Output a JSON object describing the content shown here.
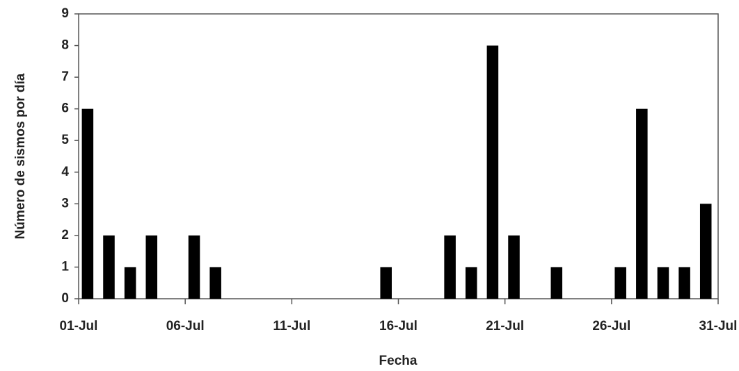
{
  "chart_data": {
    "type": "bar",
    "x_label": "Fecha",
    "y_label": "Número de sismos por día",
    "x": [
      1,
      2,
      3,
      4,
      6,
      7,
      15,
      18,
      19,
      20,
      21,
      23,
      26,
      27,
      28,
      29,
      30
    ],
    "values": [
      6,
      2,
      1,
      2,
      2,
      1,
      1,
      2,
      1,
      8,
      2,
      1,
      1,
      6,
      1,
      1,
      3
    ],
    "color": "#000000",
    "xlim": [
      1,
      31
    ],
    "xticks": [
      {
        "value": 1,
        "label": "01-Jul"
      },
      {
        "value": 6,
        "label": "06-Jul"
      },
      {
        "value": 11,
        "label": "11-Jul"
      },
      {
        "value": 16,
        "label": "16-Jul"
      },
      {
        "value": 21,
        "label": "21-Jul"
      },
      {
        "value": 26,
        "label": "26-Jul"
      },
      {
        "value": 31,
        "label": "31-Jul"
      }
    ],
    "ylim": [
      0,
      9
    ],
    "yticks": [
      0,
      1,
      2,
      3,
      4,
      5,
      6,
      7,
      8,
      9
    ]
  }
}
